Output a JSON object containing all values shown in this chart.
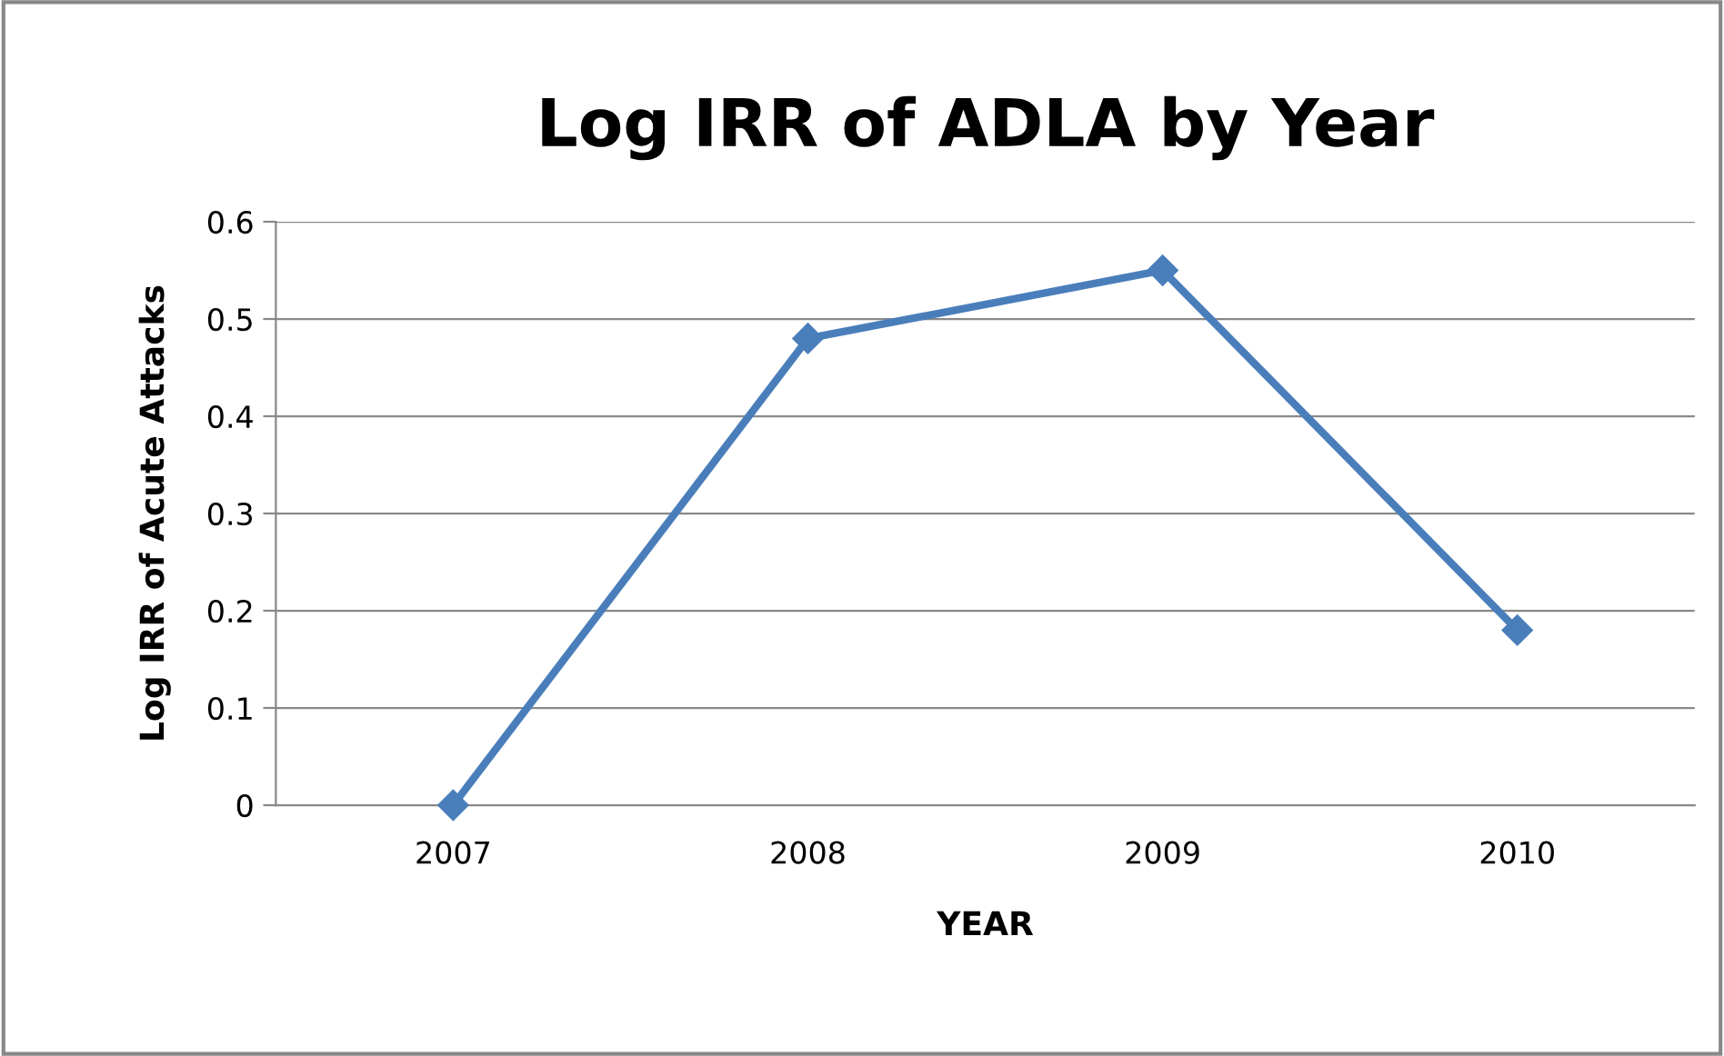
{
  "chart_data": {
    "type": "line",
    "title": "Log IRR of ADLA by Year",
    "xlabel": "YEAR",
    "ylabel": "Log IRR of Acute Attacks",
    "categories": [
      "2007",
      "2008",
      "2009",
      "2010"
    ],
    "series": [
      {
        "color": "#4a7ebb",
        "values": [
          0,
          0.48,
          0.55,
          0.18
        ]
      }
    ],
    "ylim": [
      0,
      0.6
    ],
    "yticks": [
      0,
      0.1,
      0.2,
      0.3,
      0.4,
      0.5,
      0.6
    ],
    "grid": "y",
    "legend": false,
    "marker": "diamond",
    "line_style": "solid"
  }
}
